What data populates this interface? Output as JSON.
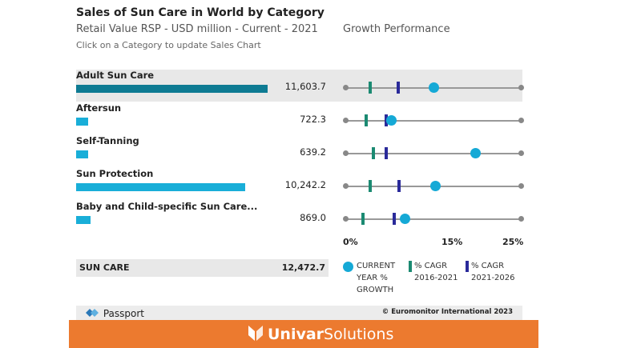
{
  "header": {
    "title": "Sales of Sun Care in World by Category",
    "subtitle": "Retail Value RSP - USD million - Current - 2021",
    "growth_title": "Growth Performance",
    "hint": "Click on a Category to update Sales Chart"
  },
  "rows": [
    {
      "label": "Adult Sun Care",
      "value": "11,603.7",
      "value_num": 11603.7,
      "current_growth_pct": 12.5,
      "cagr_2016_2021_pct": 3.5,
      "cagr_2021_2026_pct": 7.5,
      "selected": true
    },
    {
      "label": "Aftersun",
      "value": "722.3",
      "value_num": 722.3,
      "current_growth_pct": 6.5,
      "cagr_2016_2021_pct": 3.0,
      "cagr_2021_2026_pct": 5.8,
      "selected": false
    },
    {
      "label": "Self-Tanning",
      "value": "639.2",
      "value_num": 639.2,
      "current_growth_pct": 18.5,
      "cagr_2016_2021_pct": 4.0,
      "cagr_2021_2026_pct": 5.8,
      "selected": false
    },
    {
      "label": "Sun Protection",
      "value": "10,242.2",
      "value_num": 10242.2,
      "current_growth_pct": 12.8,
      "cagr_2016_2021_pct": 3.5,
      "cagr_2021_2026_pct": 7.6,
      "selected": false
    },
    {
      "label": "Baby and Child-specific Sun Care...",
      "value": "869.0",
      "value_num": 869.0,
      "current_growth_pct": 8.5,
      "cagr_2016_2021_pct": 2.5,
      "cagr_2021_2026_pct": 7.0,
      "selected": false
    }
  ],
  "axis": {
    "labels": [
      "0%",
      "15%",
      "25%"
    ],
    "min": 0,
    "max": 25
  },
  "total": {
    "label": "SUN CARE",
    "value": "12,472.7"
  },
  "legend": {
    "current_growth": "CURRENT YEAR % GROWTH",
    "cagr_past": "% CAGR 2016-2021",
    "cagr_future": "% CAGR 2021-2026"
  },
  "footer": {
    "source": "Passport",
    "copyright": "© Euromonitor International 2023"
  },
  "banner": {
    "brand_bold": "Univar",
    "brand_rest": "Solutions"
  },
  "colors": {
    "bar_selected": "#0e7b93",
    "bar": "#19aed8",
    "current_growth": "#15a9d6",
    "cagr_past": "#1b8a72",
    "cagr_future": "#2a2a9a",
    "banner": "#ec7a2f"
  }
}
